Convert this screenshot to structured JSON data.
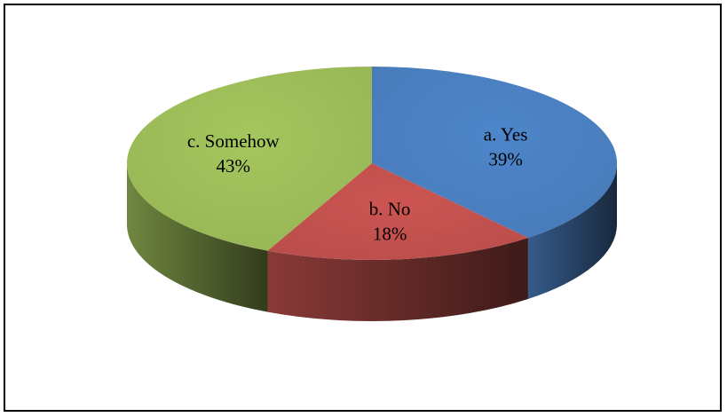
{
  "chart_data": {
    "type": "pie",
    "style": "3d",
    "title": "",
    "slices": [
      {
        "label": "a. Yes",
        "value": 39,
        "display": "39%",
        "color": "#4a7ebf"
      },
      {
        "label": "b. No",
        "value": 18,
        "display": "18%",
        "color": "#c0504d"
      },
      {
        "label": "c. Somehow",
        "value": 43,
        "display": "43%",
        "color": "#9bbb59"
      }
    ],
    "legend": "none"
  }
}
